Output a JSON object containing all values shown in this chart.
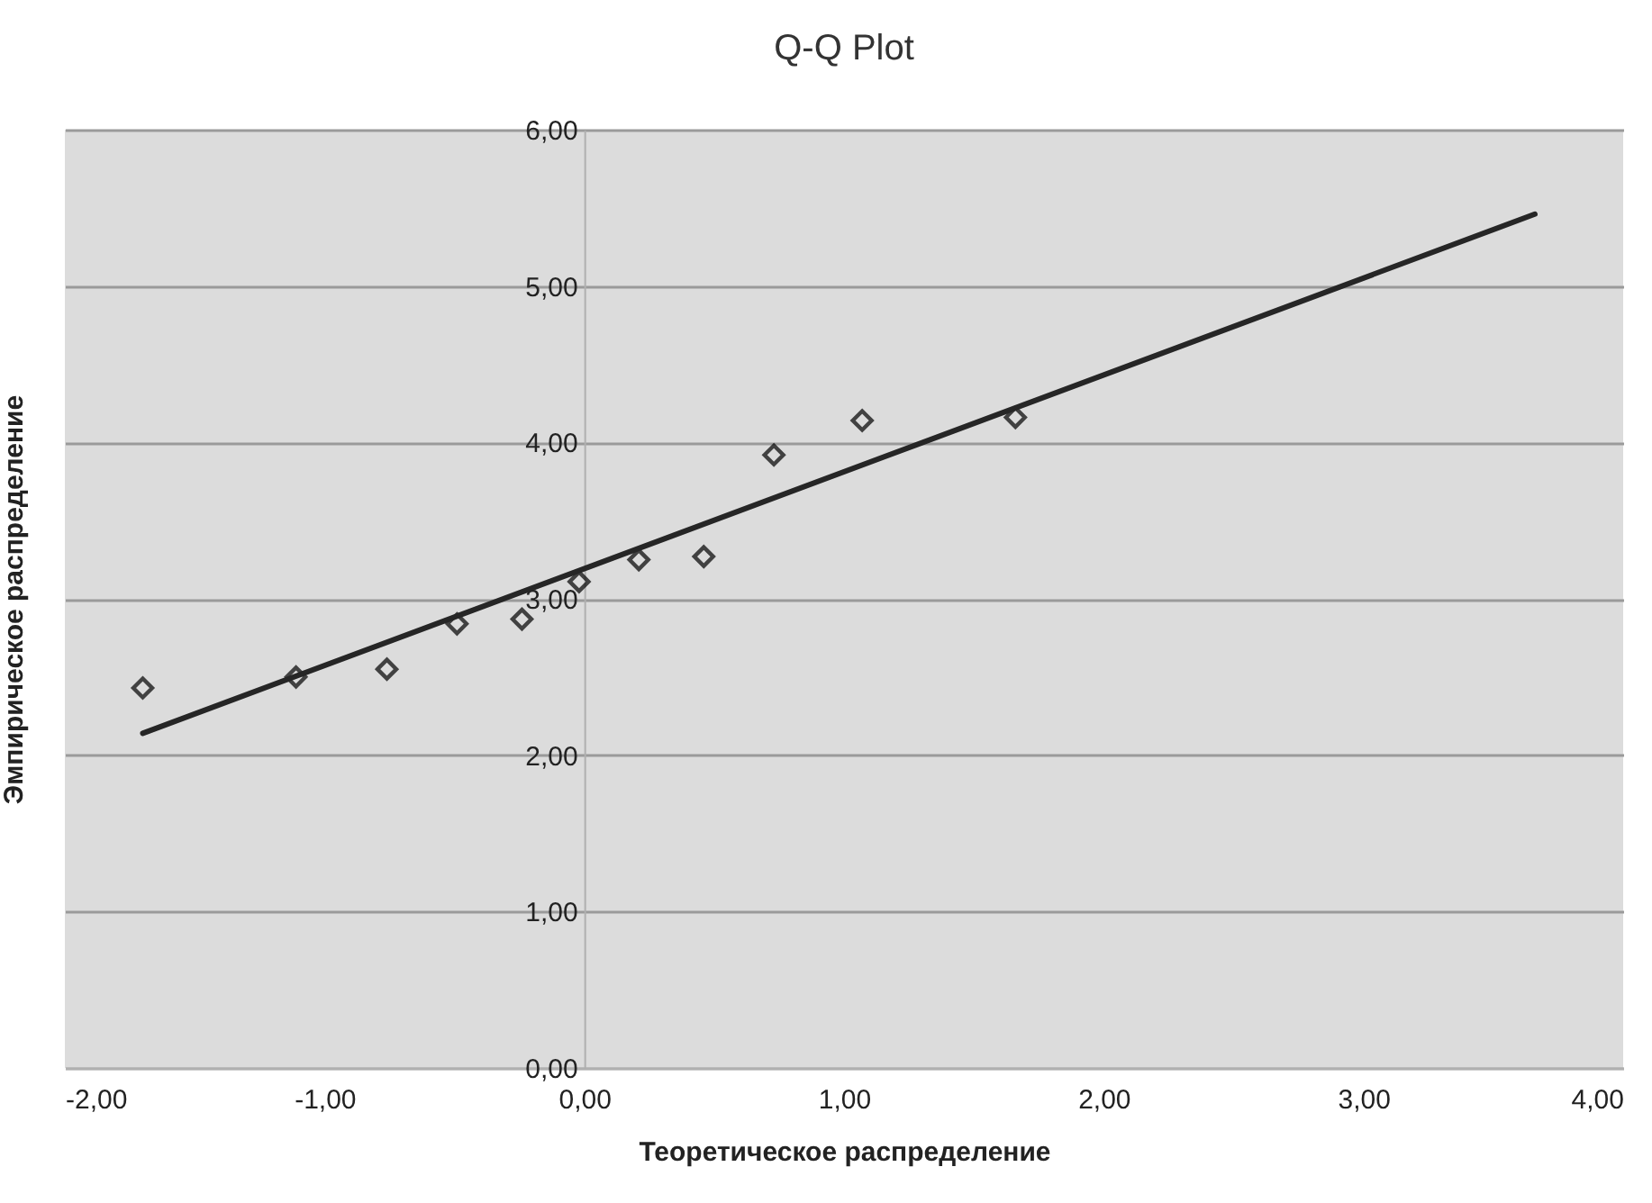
{
  "chart_data": {
    "type": "scatter",
    "title": "Q-Q Plot",
    "xlabel": "Теоретическое распределение",
    "ylabel": "Эмпирическое распределение",
    "series": [
      {
        "marker": "diamond",
        "color": "#000000",
        "x": [
          -1.7,
          -1.11,
          -0.76,
          -0.49,
          -0.24,
          -0.02,
          0.21,
          0.46,
          0.73,
          1.07,
          1.66
        ],
        "values": [
          2.43,
          2.5,
          2.55,
          2.84,
          2.87,
          3.11,
          3.25,
          3.27,
          3.92,
          4.14,
          4.16
        ]
      },
      {
        "type": "line",
        "color": "#262626",
        "x": [
          -1.7,
          3.66
        ],
        "values": [
          2.14,
          5.46
        ]
      }
    ],
    "xlim": [
      -2,
      4
    ],
    "ylim": [
      0,
      6
    ],
    "xticks": [
      {
        "value": -2,
        "label": "-2,00"
      },
      {
        "value": -1,
        "label": "-1,00"
      },
      {
        "value": 0,
        "label": "0,00"
      },
      {
        "value": 1,
        "label": "1,00"
      },
      {
        "value": 2,
        "label": "2,00"
      },
      {
        "value": 3,
        "label": "3,00"
      },
      {
        "value": 4,
        "label": "4,00"
      }
    ],
    "yticks": [
      {
        "value": 0,
        "label": "0,00"
      },
      {
        "value": 1,
        "label": "1,00"
      },
      {
        "value": 2,
        "label": "2,00"
      },
      {
        "value": 3,
        "label": "3,00"
      },
      {
        "value": 4,
        "label": "4,00"
      },
      {
        "value": 5,
        "label": "5,00"
      },
      {
        "value": 6,
        "label": "6,00"
      }
    ],
    "grid": "y",
    "line_style": "solid"
  }
}
